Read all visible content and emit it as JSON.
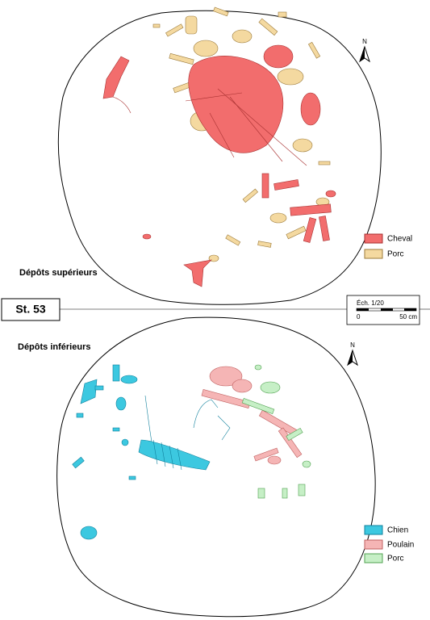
{
  "upper": {
    "title": "Dépôts supérieurs",
    "north": "N",
    "legend": [
      {
        "label": "Cheval",
        "color": "#f26d6d"
      },
      {
        "label": "Porc",
        "color": "#f4d9a0"
      }
    ]
  },
  "label": "St. 53",
  "scale": {
    "title": "Éch. 1/20",
    "start": "0",
    "end": "50 cm"
  },
  "lower": {
    "title": "Dépôts inférieurs",
    "north": "N",
    "legend": [
      {
        "label": "Chien",
        "color": "#3cc8e0"
      },
      {
        "label": "Poulain",
        "color": "#f5b5b5"
      },
      {
        "label": "Porc",
        "color": "#c6efc6"
      }
    ]
  }
}
